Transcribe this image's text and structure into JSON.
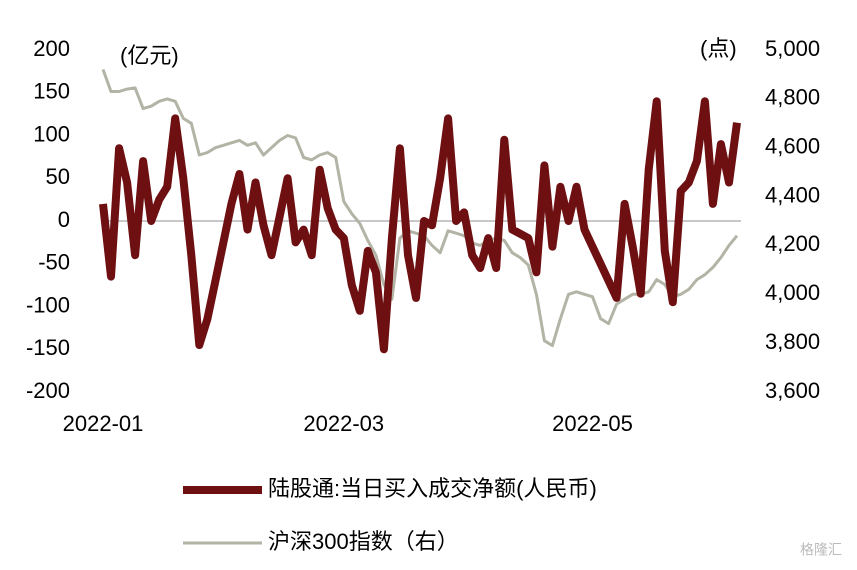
{
  "chart_data": {
    "type": "line",
    "y_unit_label": "(亿元)",
    "y2_unit_label": "(点)",
    "watermark": "格隆汇",
    "categories": [
      "2022-01",
      null,
      null,
      null,
      null,
      null,
      null,
      null,
      null,
      null,
      null,
      null,
      null,
      null,
      null,
      null,
      null,
      null,
      null,
      null,
      null,
      null,
      null,
      null,
      null,
      null,
      null,
      null,
      null,
      null,
      "2022-03",
      null,
      null,
      null,
      null,
      null,
      null,
      null,
      null,
      null,
      null,
      null,
      null,
      null,
      null,
      null,
      null,
      null,
      null,
      null,
      null,
      null,
      null,
      null,
      null,
      null,
      null,
      null,
      null,
      null,
      null,
      "2022-05",
      null,
      null,
      null,
      null,
      null,
      null,
      null,
      null,
      null,
      null,
      null,
      null,
      null,
      null,
      null,
      null,
      null,
      null
    ],
    "series": [
      {
        "name": "陆股通:当日买入成交净额(人民币)",
        "color": "#6e0f12",
        "values": [
          20,
          -65,
          85,
          45,
          -40,
          70,
          0,
          25,
          40,
          120,
          50,
          -40,
          -145,
          -115,
          -70,
          -25,
          20,
          55,
          -10,
          45,
          -5,
          -40,
          5,
          50,
          -25,
          -10,
          -40,
          60,
          15,
          -10,
          -20,
          -75,
          -105,
          -35,
          -60,
          -150,
          -20,
          85,
          -40,
          -90,
          0,
          -5,
          50,
          120,
          0,
          10,
          -40,
          -55,
          -20,
          -55,
          95,
          -10,
          -15,
          -20,
          -60,
          65,
          -30,
          40,
          0,
          40,
          -10,
          -30,
          -50,
          -70,
          -90,
          20,
          -30,
          -85,
          60,
          140,
          -35,
          -95,
          35,
          45,
          70,
          140,
          20,
          90,
          45,
          115
        ]
      },
      {
        "name": "沪深300指数（右）",
        "color": "#b3b3a6",
        "axis": "y2",
        "values": [
          4920,
          4830,
          4830,
          4840,
          4845,
          4760,
          4770,
          4790,
          4800,
          4790,
          4720,
          4700,
          4570,
          4580,
          4600,
          4610,
          4620,
          4630,
          4610,
          4620,
          4570,
          4600,
          4630,
          4650,
          4640,
          4560,
          4550,
          4570,
          4580,
          4560,
          4380,
          4330,
          4290,
          4220,
          4160,
          4040,
          3980,
          4230,
          4260,
          4250,
          4240,
          4200,
          4170,
          4260,
          4250,
          4240,
          4210,
          4200,
          4220,
          4230,
          4220,
          4170,
          4150,
          4120,
          4000,
          3810,
          3790,
          3900,
          4000,
          4010,
          4000,
          3990,
          3900,
          3880,
          3960,
          3980,
          4000,
          4000,
          4010,
          4060,
          4040,
          3990,
          4000,
          4020,
          4060,
          4080,
          4110,
          4150,
          4200,
          4240
        ]
      }
    ],
    "ylim": [
      -200,
      200
    ],
    "yticks": [
      -200,
      -150,
      -100,
      -50,
      0,
      50,
      100,
      150,
      200
    ],
    "y2lim": [
      3600,
      5000
    ],
    "y2ticks": [
      {
        "value": 3600,
        "label": "3,600"
      },
      {
        "value": 3800,
        "label": "3,800"
      },
      {
        "value": 4000,
        "label": "4,000"
      },
      {
        "value": 4200,
        "label": "4,200"
      },
      {
        "value": 4400,
        "label": "4,400"
      },
      {
        "value": 4600,
        "label": "4,600"
      },
      {
        "value": 4800,
        "label": "4,800"
      },
      {
        "value": 5000,
        "label": "5,000"
      }
    ],
    "zero_line": true
  }
}
